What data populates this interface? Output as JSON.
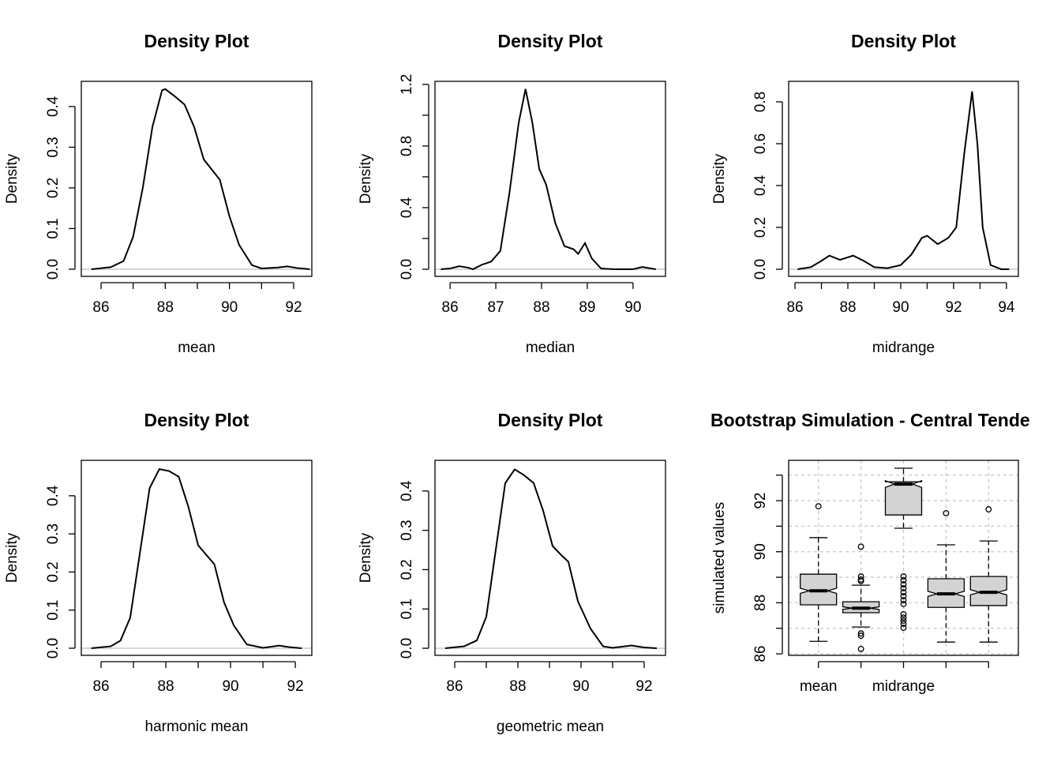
{
  "chart_data": [
    {
      "type": "line",
      "title": "Density Plot",
      "xlabel": "mean",
      "ylabel": "Density",
      "color": "#000000",
      "zero_line_color": "#bebebe",
      "x": [
        85.7,
        86.3,
        86.7,
        87.0,
        87.3,
        87.6,
        87.9,
        88.0,
        88.3,
        88.6,
        88.9,
        89.2,
        89.5,
        89.7,
        90.0,
        90.3,
        90.7,
        91.0,
        91.5,
        91.8,
        92.1,
        92.5
      ],
      "values": [
        0,
        0.005,
        0.02,
        0.08,
        0.2,
        0.35,
        0.44,
        0.443,
        0.425,
        0.405,
        0.35,
        0.27,
        0.24,
        0.22,
        0.13,
        0.06,
        0.01,
        0.002,
        0.004,
        0.007,
        0.003,
        0
      ],
      "xlim": [
        85.385,
        92.566
      ],
      "ylim": [
        -0.0175,
        0.462
      ],
      "xticks": [
        86,
        88,
        90,
        92
      ],
      "xminorticks": [
        87,
        89,
        91
      ],
      "yticks": [
        {
          "value": 0,
          "label": "0.0"
        },
        0.1,
        0.2,
        0.3,
        0.4
      ]
    },
    {
      "type": "line",
      "title": "Density Plot",
      "xlabel": "median",
      "ylabel": "Density",
      "color": "#000000",
      "zero_line_color": "#bebebe",
      "x": [
        85.8,
        86.0,
        86.2,
        86.4,
        86.5,
        86.7,
        86.9,
        87.1,
        87.3,
        87.5,
        87.65,
        87.8,
        87.95,
        88.1,
        88.3,
        88.5,
        88.7,
        88.8,
        88.95,
        89.1,
        89.3,
        89.6,
        90.0,
        90.2,
        90.5
      ],
      "values": [
        0,
        0.005,
        0.02,
        0.01,
        0.0,
        0.03,
        0.05,
        0.12,
        0.5,
        0.95,
        1.17,
        0.95,
        0.65,
        0.55,
        0.3,
        0.15,
        0.13,
        0.1,
        0.17,
        0.07,
        0.005,
        0,
        0,
        0.015,
        0
      ],
      "xlim": [
        85.67,
        90.71
      ],
      "ylim": [
        -0.046,
        1.22
      ],
      "xticks": [
        86,
        87,
        88,
        89,
        90
      ],
      "yticks": [
        {
          "value": 0,
          "label": "0.0"
        },
        0.4,
        0.8,
        1.2
      ],
      "yminorticks": [
        0.2,
        0.6,
        1.0
      ]
    },
    {
      "type": "line",
      "title": "Density Plot",
      "xlabel": "midrange",
      "ylabel": "Density",
      "color": "#000000",
      "zero_line_color": "#bebebe",
      "x": [
        86.1,
        86.6,
        87.0,
        87.3,
        87.7,
        88.2,
        88.6,
        89.0,
        89.5,
        90.0,
        90.4,
        90.8,
        91.0,
        91.4,
        91.8,
        92.1,
        92.4,
        92.7,
        92.9,
        93.1,
        93.4,
        93.8,
        94.1
      ],
      "values": [
        0,
        0.01,
        0.04,
        0.065,
        0.045,
        0.065,
        0.04,
        0.01,
        0.005,
        0.02,
        0.07,
        0.15,
        0.16,
        0.12,
        0.15,
        0.2,
        0.55,
        0.85,
        0.6,
        0.2,
        0.02,
        0,
        0
      ],
      "xlim": [
        85.76,
        94.45
      ],
      "ylim": [
        -0.034,
        0.898
      ],
      "xticks": [
        86,
        88,
        90,
        92,
        94
      ],
      "xminorticks": [
        87,
        89,
        91,
        93
      ],
      "yticks": [
        {
          "value": 0,
          "label": "0.0"
        },
        0.2,
        0.4,
        0.6,
        0.8
      ]
    },
    {
      "type": "line",
      "title": "Density Plot",
      "xlabel": "harmonic mean",
      "ylabel": "Density",
      "color": "#000000",
      "zero_line_color": "#bebebe",
      "x": [
        85.7,
        86.3,
        86.6,
        86.9,
        87.2,
        87.5,
        87.8,
        88.1,
        88.4,
        88.7,
        89.0,
        89.3,
        89.5,
        89.8,
        90.1,
        90.5,
        91.0,
        91.5,
        91.8,
        92.2
      ],
      "values": [
        0,
        0.005,
        0.02,
        0.08,
        0.25,
        0.42,
        0.47,
        0.465,
        0.45,
        0.37,
        0.27,
        0.24,
        0.22,
        0.12,
        0.06,
        0.01,
        0.001,
        0.007,
        0.003,
        0
      ],
      "xlim": [
        85.39,
        92.51
      ],
      "ylim": [
        -0.0187,
        0.493
      ],
      "xticks": [
        86,
        88,
        90,
        92
      ],
      "xminorticks": [
        87,
        89,
        91
      ],
      "yticks": [
        {
          "value": 0,
          "label": "0.0"
        },
        0.1,
        0.2,
        0.3,
        0.4
      ]
    },
    {
      "type": "line",
      "title": "Density Plot",
      "xlabel": "geometric mean",
      "ylabel": "Density",
      "color": "#000000",
      "zero_line_color": "#bebebe",
      "x": [
        85.7,
        86.3,
        86.7,
        87.0,
        87.3,
        87.6,
        87.9,
        88.2,
        88.5,
        88.8,
        89.1,
        89.4,
        89.6,
        89.9,
        90.3,
        90.7,
        91.0,
        91.6,
        92.0,
        92.4
      ],
      "values": [
        0,
        0.005,
        0.02,
        0.08,
        0.25,
        0.42,
        0.455,
        0.44,
        0.42,
        0.35,
        0.26,
        0.235,
        0.22,
        0.12,
        0.05,
        0.005,
        0.001,
        0.007,
        0.002,
        0
      ],
      "xlim": [
        85.375,
        92.675
      ],
      "ylim": [
        -0.018,
        0.478
      ],
      "xticks": [
        86,
        88,
        90,
        92
      ],
      "xminorticks": [
        87,
        89,
        91
      ],
      "yticks": [
        {
          "value": 0,
          "label": "0.0"
        },
        0.1,
        0.2,
        0.3,
        0.4
      ]
    },
    {
      "type": "boxplot",
      "title": "Bootstrap Simulation - Central Tende",
      "ylabel": "simulated values",
      "color": "#d3d3d3",
      "grid": true,
      "categories": [
        "mean",
        null,
        "midrange",
        null,
        null
      ],
      "boxes": [
        {
          "whislo": 86.49,
          "q1": 87.92,
          "med": 88.47,
          "q3": 89.12,
          "whishi": 90.55,
          "notch": [
            88.37,
            88.57
          ],
          "outliers": [
            91.78
          ]
        },
        {
          "whislo": 87.05,
          "q1": 87.61,
          "med": 87.79,
          "q3": 88.04,
          "whishi": 88.69,
          "notch": [
            87.74,
            87.84
          ],
          "outliers": [
            90.2,
            89.03,
            88.91,
            88.85,
            86.8,
            86.71,
            86.19
          ]
        },
        {
          "whislo": 90.92,
          "q1": 91.44,
          "med": 92.65,
          "q3": 92.74,
          "whishi": 93.27,
          "notch": [
            92.52,
            92.78
          ],
          "outliers": [
            89.03,
            88.88,
            88.72,
            88.57,
            88.41,
            88.26,
            88.1,
            87.95,
            87.55,
            87.42,
            87.3,
            87.18,
            87.02
          ]
        },
        {
          "whislo": 86.46,
          "q1": 87.82,
          "med": 88.35,
          "q3": 88.94,
          "whishi": 90.27,
          "notch": [
            88.25,
            88.45
          ],
          "outliers": [
            91.51
          ]
        },
        {
          "whislo": 86.46,
          "q1": 87.89,
          "med": 88.41,
          "q3": 89.03,
          "whishi": 90.42,
          "notch": [
            88.31,
            88.51
          ],
          "outliers": [
            91.66
          ]
        }
      ],
      "ylim": [
        85.94,
        93.58
      ],
      "yticks": [
        86,
        88,
        90,
        92
      ],
      "yminorticks": [
        87,
        89,
        91,
        93
      ]
    }
  ]
}
